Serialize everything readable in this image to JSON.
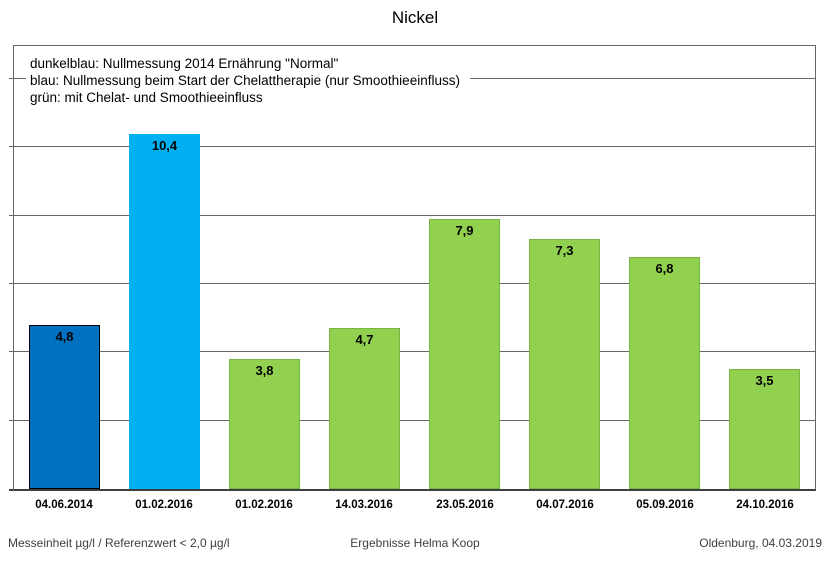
{
  "title": "Nickel",
  "legend": {
    "lines": [
      "dunkelblau: Nullmessung 2014 Ernährung \"Normal\"",
      "blau: Nullmessung beim Start der Chelattherapie (nur Smoothieeinfluss)",
      "grün: mit Chelat- und Smoothieeinfluss"
    ]
  },
  "chart_data": {
    "type": "bar",
    "title": "Nickel",
    "categories": [
      "04.06.2014",
      "01.02.2016",
      "01.02.2016",
      "14.03.2016",
      "23.05.2016",
      "04.07.2016",
      "05.09.2016",
      "24.10.2016"
    ],
    "values": [
      4.8,
      10.4,
      3.8,
      4.7,
      7.9,
      7.3,
      6.8,
      3.5
    ],
    "value_labels": [
      "4,8",
      "10,4",
      "3,8",
      "4,7",
      "7,9",
      "7,3",
      "6,8",
      "3,5"
    ],
    "series_by_bar": [
      "dunkelblau",
      "blau",
      "grün",
      "grün",
      "grün",
      "grün",
      "grün",
      "grün"
    ],
    "bar_colors": [
      "#0070C0",
      "#00B0F0",
      "#92D050",
      "#92D050",
      "#92D050",
      "#92D050",
      "#92D050",
      "#92D050"
    ],
    "bar_border_colors": [
      "#000000",
      "#00B0F0",
      "#79B544",
      "#79B544",
      "#79B544",
      "#79B544",
      "#79B544",
      "#79B544"
    ],
    "xlabel": "",
    "ylabel": "",
    "ylim": [
      0,
      12.96
    ],
    "gridline_values": [
      2,
      4,
      6,
      8,
      10,
      12
    ],
    "grid": true,
    "y_axis_labels_visible": false,
    "legend_position": "inside-top-left"
  },
  "footer": {
    "left": "Messeinheit µg/l / Referenzwert < 2,0 µg/l",
    "center": "Ergebnisse Helma Koop",
    "right": "Oldenburg, 04.03.2019"
  },
  "colors": {
    "dunkelblau": "#0070C0",
    "blau": "#00B0F0",
    "gruen": "#92D050",
    "gridline": "#666666",
    "axis": "#3F3F3F",
    "background": "#FFFFFF",
    "text": "#000000",
    "footer_text": "#3F3F3F"
  }
}
